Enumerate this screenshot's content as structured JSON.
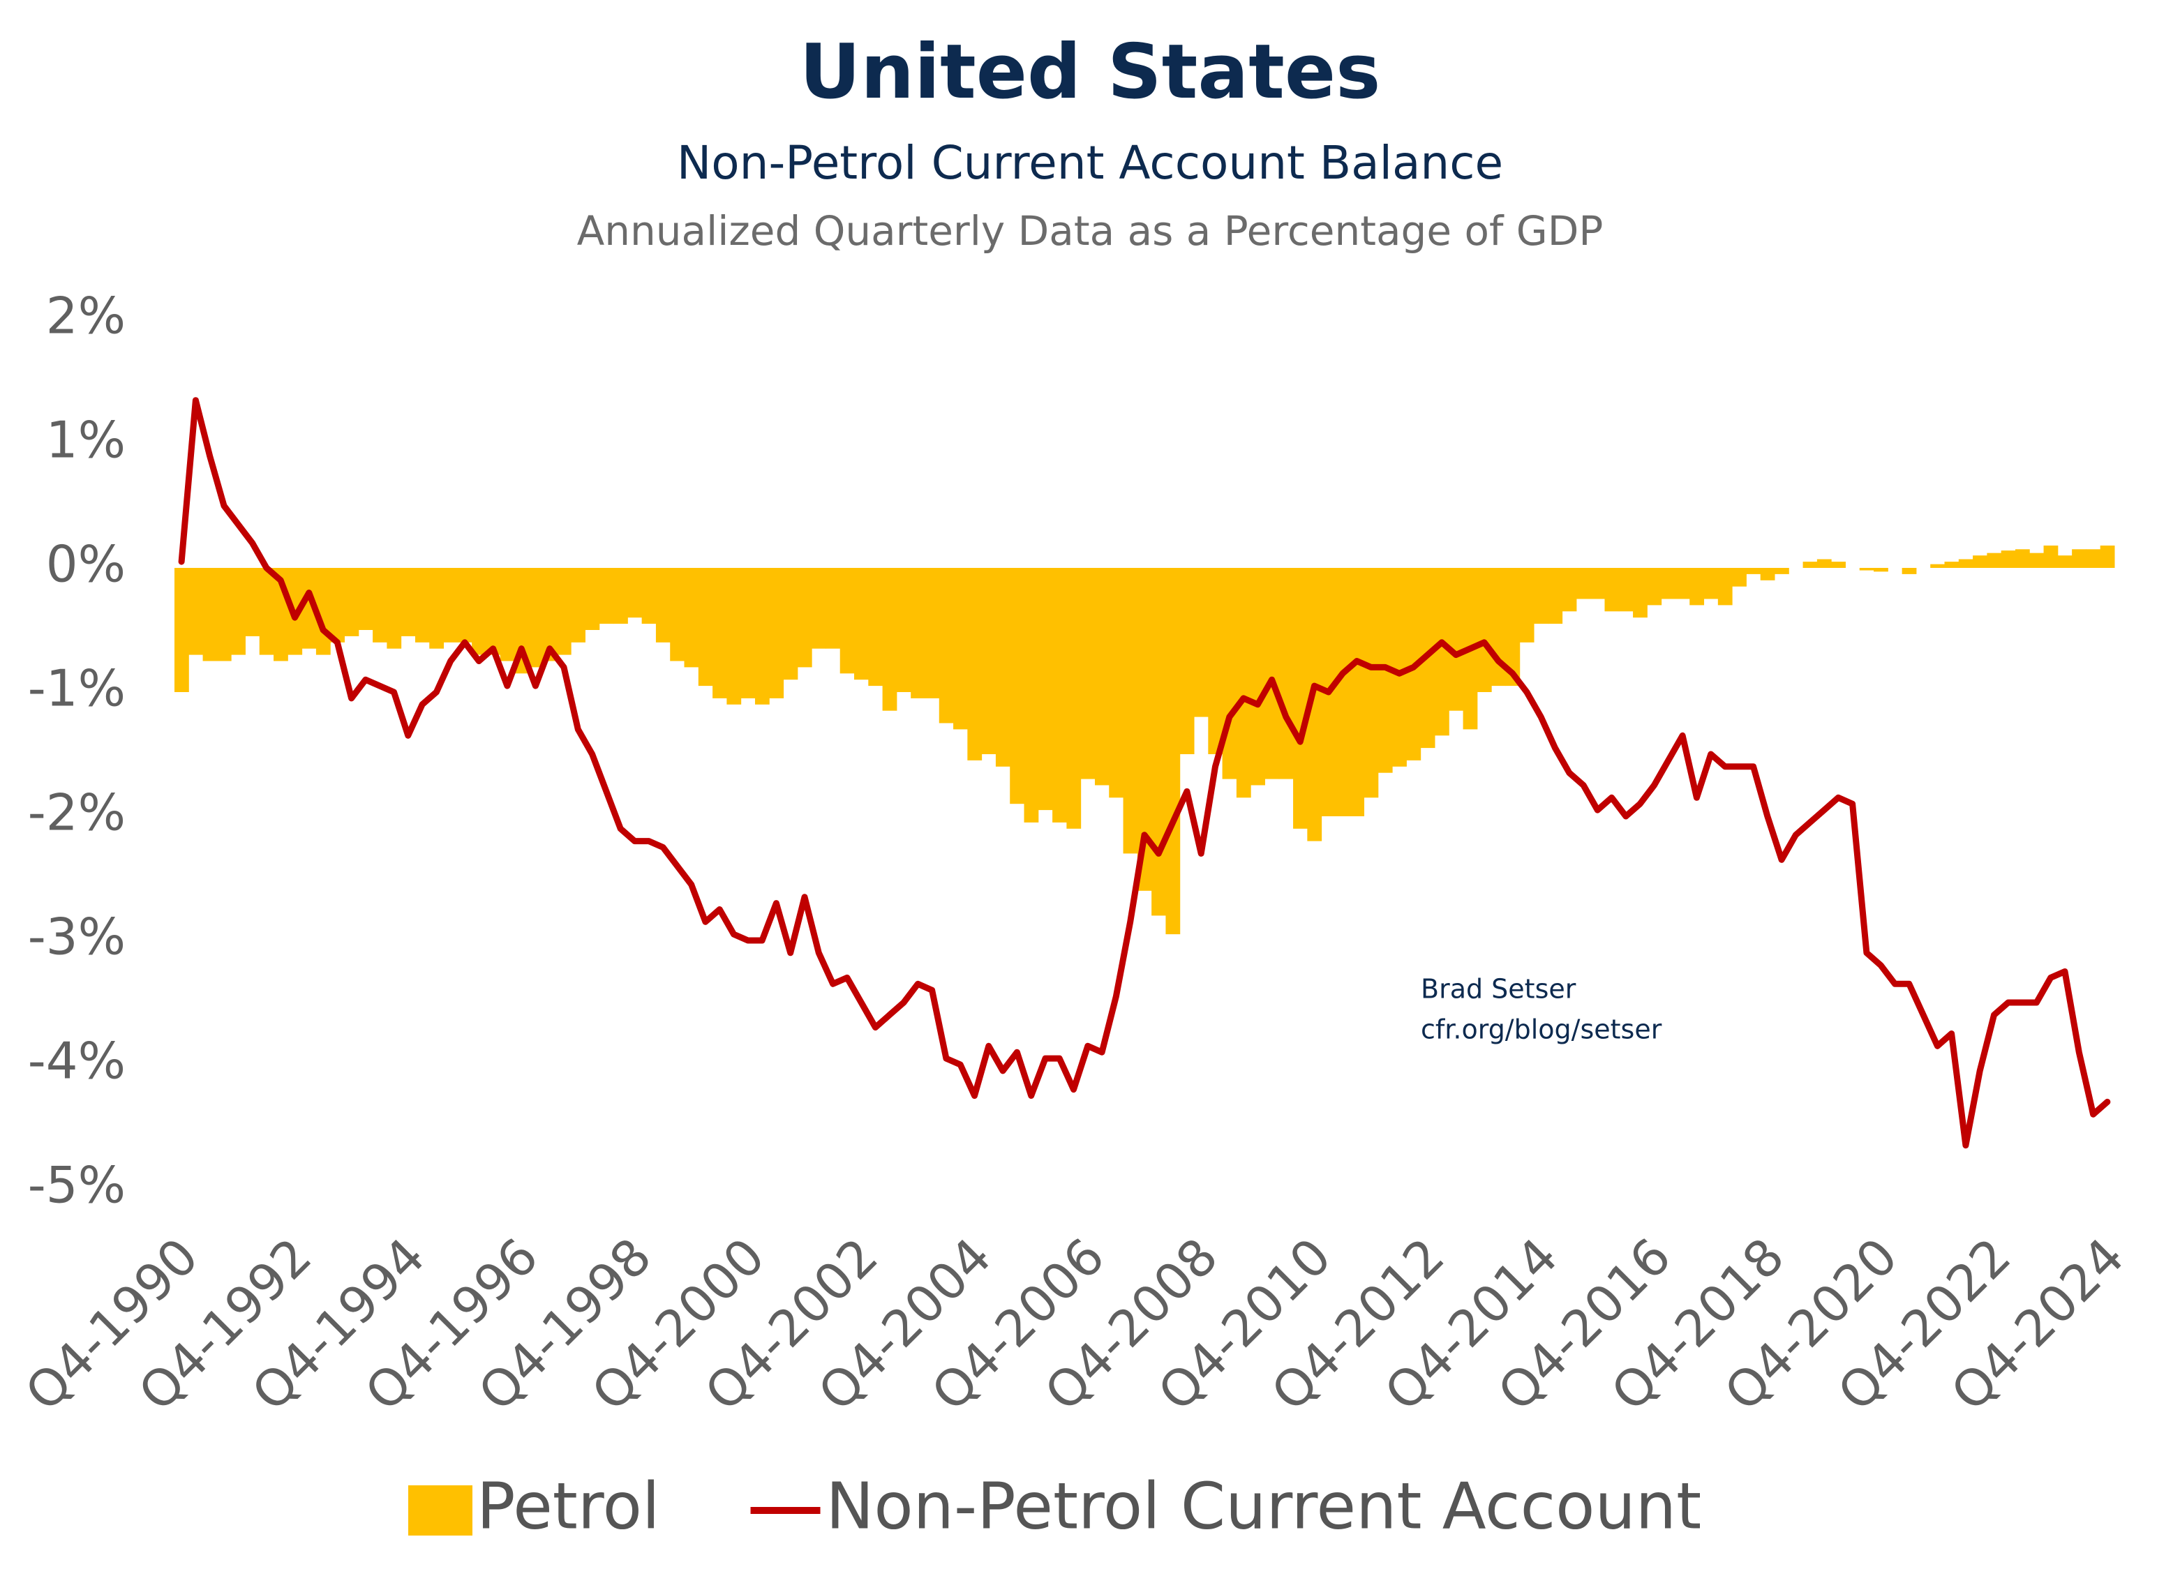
{
  "chart_data": {
    "type": "bar",
    "title": "United States",
    "subtitle": "Non-Petrol Current Account Balance",
    "subtitle2": "Annualized Quarterly Data as a Percentage of GDP",
    "annotations": [
      "Brad Setser",
      "cfr.org/blog/setser"
    ],
    "categories": [
      "Q4-1990",
      null,
      null,
      null,
      null,
      null,
      null,
      null,
      "Q4-1992",
      null,
      null,
      null,
      null,
      null,
      null,
      null,
      "Q4-1994",
      null,
      null,
      null,
      null,
      null,
      null,
      null,
      "Q4-1996",
      null,
      null,
      null,
      null,
      null,
      null,
      null,
      "Q4-1998",
      null,
      null,
      null,
      null,
      null,
      null,
      null,
      "Q4-2000",
      null,
      null,
      null,
      null,
      null,
      null,
      null,
      "Q4-2002",
      null,
      null,
      null,
      null,
      null,
      null,
      null,
      "Q4-2004",
      null,
      null,
      null,
      null,
      null,
      null,
      null,
      "Q4-2006",
      null,
      null,
      null,
      null,
      null,
      null,
      null,
      "Q4-2008",
      null,
      null,
      null,
      null,
      null,
      null,
      null,
      "Q4-2010",
      null,
      null,
      null,
      null,
      null,
      null,
      null,
      "Q4-2012",
      null,
      null,
      null,
      null,
      null,
      null,
      null,
      "Q4-2014",
      null,
      null,
      null,
      null,
      null,
      null,
      null,
      "Q4-2016",
      null,
      null,
      null,
      null,
      null,
      null,
      null,
      "Q4-2018",
      null,
      null,
      null,
      null,
      null,
      null,
      null,
      "Q4-2020",
      null,
      null,
      null,
      null,
      null,
      null,
      null,
      "Q4-2022",
      null,
      null,
      null,
      null,
      null,
      null,
      null,
      "Q4-2024"
    ],
    "series": [
      {
        "name": "Petrol",
        "type": "bar",
        "color": "#ffc000",
        "values": [
          -1.0,
          -0.7,
          -0.75,
          -0.75,
          -0.7,
          -0.55,
          -0.7,
          -0.75,
          -0.7,
          -0.65,
          -0.7,
          -0.6,
          -0.55,
          -0.5,
          -0.6,
          -0.65,
          -0.55,
          -0.6,
          -0.65,
          -0.6,
          -0.6,
          -0.7,
          -0.7,
          -0.75,
          -0.85,
          -0.8,
          -0.75,
          -0.7,
          -0.6,
          -0.5,
          -0.45,
          -0.45,
          -0.4,
          -0.45,
          -0.6,
          -0.75,
          -0.8,
          -0.95,
          -1.05,
          -1.1,
          -1.05,
          -1.1,
          -1.05,
          -0.9,
          -0.8,
          -0.65,
          -0.65,
          -0.85,
          -0.9,
          -0.95,
          -1.15,
          -1.0,
          -1.05,
          -1.05,
          -1.25,
          -1.3,
          -1.55,
          -1.5,
          -1.6,
          -1.9,
          -2.05,
          -1.95,
          -2.05,
          -2.1,
          -1.7,
          -1.75,
          -1.85,
          -2.3,
          -2.6,
          -2.8,
          -2.95,
          -1.5,
          -1.2,
          -1.5,
          -1.7,
          -1.85,
          -1.75,
          -1.7,
          -1.7,
          -2.1,
          -2.2,
          -2.0,
          -2.0,
          -2.0,
          -1.85,
          -1.65,
          -1.6,
          -1.55,
          -1.45,
          -1.35,
          -1.15,
          -1.3,
          -1.0,
          -0.95,
          -0.95,
          -0.6,
          -0.45,
          -0.45,
          -0.35,
          -0.25,
          -0.25,
          -0.35,
          -0.35,
          -0.4,
          -0.3,
          -0.25,
          -0.25,
          -0.3,
          -0.25,
          -0.3,
          -0.15,
          -0.05,
          -0.1,
          -0.05,
          0.0,
          0.05,
          0.07,
          0.05,
          0.0,
          -0.02,
          -0.03,
          0.0,
          -0.05,
          0.0,
          0.03,
          0.05,
          0.07,
          0.1,
          0.12,
          0.14,
          0.15,
          0.12,
          0.18,
          0.1,
          0.15,
          0.15,
          0.18
        ]
      },
      {
        "name": "Non-Petrol Current Account",
        "type": "line",
        "color": "#c00000",
        "values": [
          0.05,
          1.35,
          0.9,
          0.5,
          0.35,
          0.2,
          0.0,
          -0.1,
          -0.4,
          -0.2,
          -0.5,
          -0.6,
          -1.05,
          -0.9,
          -0.95,
          -1.0,
          -1.35,
          -1.1,
          -1.0,
          -0.75,
          -0.6,
          -0.75,
          -0.65,
          -0.95,
          -0.65,
          -0.95,
          -0.65,
          -0.8,
          -1.3,
          -1.5,
          -1.8,
          -2.1,
          -2.2,
          -2.2,
          -2.25,
          -2.4,
          -2.55,
          -2.85,
          -2.75,
          -2.95,
          -3.0,
          -3.0,
          -2.7,
          -3.1,
          -2.65,
          -3.1,
          -3.35,
          -3.3,
          -3.5,
          -3.7,
          -3.6,
          -3.5,
          -3.35,
          -3.4,
          -3.95,
          -4.0,
          -4.25,
          -3.85,
          -4.05,
          -3.9,
          -4.25,
          -3.95,
          -3.95,
          -4.2,
          -3.85,
          -3.9,
          -3.45,
          -2.85,
          -2.15,
          -2.3,
          -2.05,
          -1.8,
          -2.3,
          -1.6,
          -1.2,
          -1.05,
          -1.1,
          -0.9,
          -1.2,
          -1.4,
          -0.95,
          -1.0,
          -0.85,
          -0.75,
          -0.8,
          -0.8,
          -0.85,
          -0.8,
          -0.7,
          -0.6,
          -0.7,
          -0.65,
          -0.6,
          -0.75,
          -0.85,
          -1.0,
          -1.2,
          -1.45,
          -1.65,
          -1.75,
          -1.95,
          -1.85,
          -2.0,
          -1.9,
          -1.75,
          -1.55,
          -1.35,
          -1.85,
          -1.5,
          -1.6,
          -1.6,
          -1.6,
          -2.0,
          -2.35,
          -2.15,
          -2.05,
          -1.95,
          -1.85,
          -1.9,
          -3.1,
          -3.2,
          -3.35,
          -3.35,
          -3.6,
          -3.85,
          -3.75,
          -4.65,
          -4.05,
          -3.6,
          -3.5,
          -3.5,
          -3.5,
          -3.3,
          -3.25,
          -3.9,
          -4.4,
          -4.3
        ]
      }
    ],
    "ylim": [
      -5.4,
      2.2
    ],
    "yticks": [
      {
        "value": 2,
        "label": "2%"
      },
      {
        "value": 1,
        "label": "1%"
      },
      {
        "value": 0,
        "label": "0%"
      },
      {
        "value": -1,
        "label": "-1%"
      },
      {
        "value": -2,
        "label": "-2%"
      },
      {
        "value": -3,
        "label": "-3%"
      },
      {
        "value": -4,
        "label": "-4%"
      },
      {
        "value": -5,
        "label": "-5%"
      }
    ],
    "grid": false
  }
}
